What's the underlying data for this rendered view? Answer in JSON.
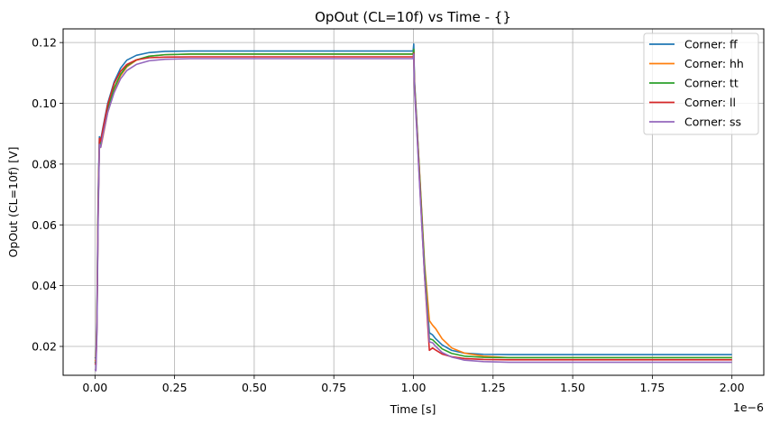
{
  "chart_data": {
    "type": "line",
    "title": "OpOut (CL=10f) vs Time - {}",
    "xlabel": "Time [s]",
    "ylabel": "OpOut (CL=10f) [V]",
    "x_offset_label": "1e−6",
    "xlim": [
      -1e-07,
      2.1e-06
    ],
    "ylim": [
      0.0105,
      0.1245
    ],
    "grid": true,
    "legend_position": "top-right",
    "x_ticks": [
      {
        "value": 0.0,
        "label": "0.00"
      },
      {
        "value": 2.5e-07,
        "label": "0.25"
      },
      {
        "value": 5e-07,
        "label": "0.50"
      },
      {
        "value": 7.5e-07,
        "label": "0.75"
      },
      {
        "value": 1e-06,
        "label": "1.00"
      },
      {
        "value": 1.25e-06,
        "label": "1.25"
      },
      {
        "value": 1.5e-06,
        "label": "1.50"
      },
      {
        "value": 1.75e-06,
        "label": "1.75"
      },
      {
        "value": 2e-06,
        "label": "2.00"
      }
    ],
    "y_ticks": [
      {
        "value": 0.02,
        "label": "0.02"
      },
      {
        "value": 0.04,
        "label": "0.04"
      },
      {
        "value": 0.06,
        "label": "0.06"
      },
      {
        "value": 0.08,
        "label": "0.08"
      },
      {
        "value": 0.1,
        "label": "0.10"
      },
      {
        "value": 0.12,
        "label": "0.12"
      }
    ],
    "series": [
      {
        "name": "Corner: ff",
        "color": "#1f77b4",
        "points": [
          [
            0,
            0.0165
          ],
          [
            3e-09,
            0.016
          ],
          [
            6e-09,
            0.03
          ],
          [
            1e-08,
            0.07
          ],
          [
            1.4e-08,
            0.089
          ],
          [
            1.8e-08,
            0.088
          ],
          [
            2.5e-08,
            0.092
          ],
          [
            4e-08,
            0.1
          ],
          [
            6e-08,
            0.107
          ],
          [
            8e-08,
            0.1115
          ],
          [
            1e-07,
            0.1142
          ],
          [
            1.3e-07,
            0.1158
          ],
          [
            1.7e-07,
            0.1167
          ],
          [
            2.2e-07,
            0.1171
          ],
          [
            3e-07,
            0.1172
          ],
          [
            5e-07,
            0.1172
          ],
          [
            8e-07,
            0.1172
          ],
          [
            9.99e-07,
            0.1172
          ],
          [
            1.001e-06,
            0.1195
          ],
          [
            1.003e-06,
            0.108
          ],
          [
            1.01e-06,
            0.095
          ],
          [
            1.02e-06,
            0.075
          ],
          [
            1.035e-06,
            0.045
          ],
          [
            1.05e-06,
            0.0245
          ],
          [
            1.06e-06,
            0.0238
          ],
          [
            1.07e-06,
            0.0225
          ],
          [
            1.09e-06,
            0.0205
          ],
          [
            1.12e-06,
            0.0187
          ],
          [
            1.16e-06,
            0.0178
          ],
          [
            1.22e-06,
            0.0174
          ],
          [
            1.3e-06,
            0.0173
          ],
          [
            1.6e-06,
            0.0173
          ],
          [
            2e-06,
            0.0173
          ]
        ]
      },
      {
        "name": "Corner: hh",
        "color": "#ff7f0e",
        "points": [
          [
            0,
            0.0155
          ],
          [
            3e-09,
            0.015
          ],
          [
            6e-09,
            0.028
          ],
          [
            1e-08,
            0.067
          ],
          [
            1.4e-08,
            0.087
          ],
          [
            1.8e-08,
            0.0855
          ],
          [
            2.5e-08,
            0.089
          ],
          [
            4e-08,
            0.097
          ],
          [
            6e-08,
            0.104
          ],
          [
            8e-08,
            0.109
          ],
          [
            1e-07,
            0.112
          ],
          [
            1.3e-07,
            0.1142
          ],
          [
            1.7e-07,
            0.1155
          ],
          [
            2.2e-07,
            0.116
          ],
          [
            3e-07,
            0.1162
          ],
          [
            5e-07,
            0.1162
          ],
          [
            8e-07,
            0.1162
          ],
          [
            9.99e-07,
            0.1162
          ],
          [
            1.001e-06,
            0.1175
          ],
          [
            1.003e-06,
            0.107
          ],
          [
            1.01e-06,
            0.094
          ],
          [
            1.02e-06,
            0.076
          ],
          [
            1.035e-06,
            0.047
          ],
          [
            1.05e-06,
            0.0285
          ],
          [
            1.06e-06,
            0.027
          ],
          [
            1.07e-06,
            0.0258
          ],
          [
            1.09e-06,
            0.0225
          ],
          [
            1.12e-06,
            0.0195
          ],
          [
            1.16e-06,
            0.0178
          ],
          [
            1.22e-06,
            0.0168
          ],
          [
            1.3e-06,
            0.0163
          ],
          [
            1.6e-06,
            0.0163
          ],
          [
            2e-06,
            0.0163
          ]
        ]
      },
      {
        "name": "Corner: tt",
        "color": "#2ca02c",
        "points": [
          [
            0,
            0.015
          ],
          [
            3e-09,
            0.0145
          ],
          [
            6e-09,
            0.027
          ],
          [
            1e-08,
            0.066
          ],
          [
            1.4e-08,
            0.0875
          ],
          [
            1.8e-08,
            0.0865
          ],
          [
            2.5e-08,
            0.0905
          ],
          [
            4e-08,
            0.098
          ],
          [
            6e-08,
            0.105
          ],
          [
            8e-08,
            0.1095
          ],
          [
            1e-07,
            0.1123
          ],
          [
            1.3e-07,
            0.1143
          ],
          [
            1.7e-07,
            0.1155
          ],
          [
            2.2e-07,
            0.116
          ],
          [
            3e-07,
            0.1162
          ],
          [
            5e-07,
            0.1162
          ],
          [
            8e-07,
            0.1162
          ],
          [
            9.99e-07,
            0.1162
          ],
          [
            1.001e-06,
            0.1178
          ],
          [
            1.003e-06,
            0.107
          ],
          [
            1.01e-06,
            0.094
          ],
          [
            1.02e-06,
            0.075
          ],
          [
            1.035e-06,
            0.046
          ],
          [
            1.05e-06,
            0.0225
          ],
          [
            1.06e-06,
            0.0222
          ],
          [
            1.07e-06,
            0.0212
          ],
          [
            1.09e-06,
            0.0192
          ],
          [
            1.12e-06,
            0.0177
          ],
          [
            1.16e-06,
            0.0168
          ],
          [
            1.22e-06,
            0.0164
          ],
          [
            1.3e-06,
            0.0163
          ],
          [
            1.6e-06,
            0.0163
          ],
          [
            2e-06,
            0.0163
          ]
        ]
      },
      {
        "name": "Corner: ll",
        "color": "#d62728",
        "points": [
          [
            0,
            0.0145
          ],
          [
            3e-09,
            0.014
          ],
          [
            6e-09,
            0.026
          ],
          [
            1e-08,
            0.065
          ],
          [
            1.4e-08,
            0.0885
          ],
          [
            1.8e-08,
            0.0875
          ],
          [
            2.5e-08,
            0.0915
          ],
          [
            4e-08,
            0.0995
          ],
          [
            6e-08,
            0.1065
          ],
          [
            8e-08,
            0.1105
          ],
          [
            1e-07,
            0.1128
          ],
          [
            1.3e-07,
            0.1143
          ],
          [
            1.7e-07,
            0.115
          ],
          [
            2.2e-07,
            0.1152
          ],
          [
            3e-07,
            0.1153
          ],
          [
            5e-07,
            0.1153
          ],
          [
            8e-07,
            0.1153
          ],
          [
            9.99e-07,
            0.1153
          ],
          [
            1.001e-06,
            0.1165
          ],
          [
            1.003e-06,
            0.106
          ],
          [
            1.01e-06,
            0.093
          ],
          [
            1.02e-06,
            0.073
          ],
          [
            1.035e-06,
            0.043
          ],
          [
            1.05e-06,
            0.0187
          ],
          [
            1.06e-06,
            0.0195
          ],
          [
            1.07e-06,
            0.0188
          ],
          [
            1.09e-06,
            0.0175
          ],
          [
            1.12e-06,
            0.0166
          ],
          [
            1.16e-06,
            0.016
          ],
          [
            1.22e-06,
            0.0157
          ],
          [
            1.3e-06,
            0.0156
          ],
          [
            1.6e-06,
            0.0156
          ],
          [
            2e-06,
            0.0156
          ]
        ]
      },
      {
        "name": "Corner: ss",
        "color": "#9467bd",
        "points": [
          [
            0,
            0.0125
          ],
          [
            3e-09,
            0.012
          ],
          [
            6e-09,
            0.024
          ],
          [
            1e-08,
            0.062
          ],
          [
            1.4e-08,
            0.0865
          ],
          [
            1.8e-08,
            0.0855
          ],
          [
            2.5e-08,
            0.0895
          ],
          [
            4e-08,
            0.097
          ],
          [
            6e-08,
            0.1035
          ],
          [
            8e-08,
            0.108
          ],
          [
            1e-07,
            0.1108
          ],
          [
            1.3e-07,
            0.1128
          ],
          [
            1.7e-07,
            0.114
          ],
          [
            2.2e-07,
            0.1145
          ],
          [
            3e-07,
            0.1147
          ],
          [
            5e-07,
            0.1147
          ],
          [
            8e-07,
            0.1147
          ],
          [
            9.99e-07,
            0.1147
          ],
          [
            1.001e-06,
            0.1162
          ],
          [
            1.003e-06,
            0.105
          ],
          [
            1.01e-06,
            0.092
          ],
          [
            1.02e-06,
            0.072
          ],
          [
            1.035e-06,
            0.043
          ],
          [
            1.05e-06,
            0.0215
          ],
          [
            1.06e-06,
            0.0212
          ],
          [
            1.07e-06,
            0.02
          ],
          [
            1.09e-06,
            0.018
          ],
          [
            1.12e-06,
            0.0165
          ],
          [
            1.16e-06,
            0.0155
          ],
          [
            1.22e-06,
            0.015
          ],
          [
            1.3e-06,
            0.0148
          ],
          [
            1.6e-06,
            0.0148
          ],
          [
            2e-06,
            0.0148
          ]
        ]
      }
    ]
  }
}
